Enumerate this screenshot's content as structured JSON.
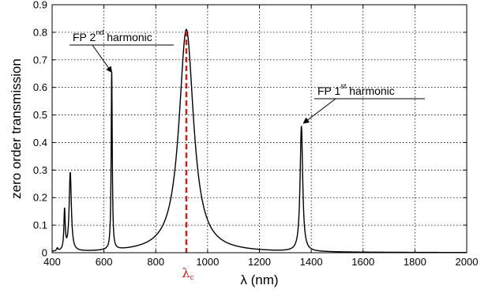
{
  "chart_data": {
    "type": "line",
    "xlabel": "λ (nm)",
    "ylabel": "zero order transmission",
    "xlim": [
      400,
      2000
    ],
    "ylim": [
      0,
      0.9
    ],
    "xticks": [
      400,
      600,
      800,
      1000,
      1200,
      1400,
      1600,
      1800,
      2000
    ],
    "yticks": [
      0,
      0.1,
      0.2,
      0.3,
      0.4,
      0.5,
      0.6,
      0.7,
      0.8,
      0.9
    ],
    "xtick_labels": [
      "400",
      "600",
      "800",
      "1000",
      "1200",
      "1400",
      "1600",
      "1800",
      "2000"
    ],
    "ytick_labels": [
      "0",
      "0.1",
      "0.2",
      "0.3",
      "0.4",
      "0.5",
      "0.6",
      "0.7",
      "0.8",
      "0.9"
    ],
    "grid": true,
    "series": [
      {
        "color": "#000000",
        "peaks": [
          {
            "x": 420,
            "y": 0.01,
            "width": 3
          },
          {
            "x": 448,
            "y": 0.145,
            "width": 3
          },
          {
            "x": 470,
            "y": 0.285,
            "width": 5
          },
          {
            "x": 630,
            "y": 0.645,
            "width": 2.5
          },
          {
            "x": 918,
            "y": 0.81,
            "width": 34
          },
          {
            "x": 1362,
            "y": 0.455,
            "width": 6
          }
        ]
      }
    ],
    "marker_line": {
      "x": 918,
      "color": "#cc1f1f",
      "label": "λ",
      "label_sub": "c"
    },
    "annotations": [
      {
        "base": "FP 2",
        "sup": "nd",
        "rest": " harmonic",
        "arrow_to": [
          630,
          0.655
        ]
      },
      {
        "base": "FP 1",
        "sup": "st",
        "rest": " harmonic",
        "arrow_to": [
          1370,
          0.47
        ]
      }
    ]
  }
}
